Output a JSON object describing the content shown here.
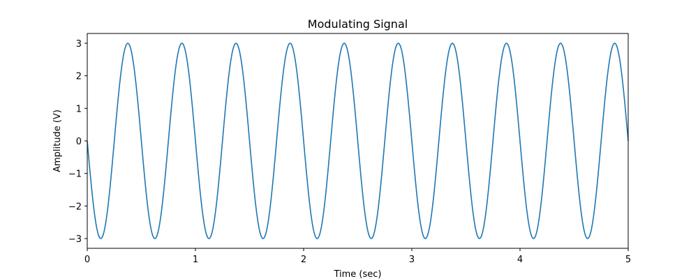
{
  "chart_data": {
    "type": "line",
    "title": "Modulating Signal",
    "xlabel": "Time (sec)",
    "ylabel": "Amplitude (V)",
    "xlim": [
      0,
      5
    ],
    "ylim": [
      -3.3,
      3.3
    ],
    "xticks": [
      0,
      1,
      2,
      3,
      4,
      5
    ],
    "xtick_labels": [
      "0",
      "1",
      "2",
      "3",
      "4",
      "5"
    ],
    "yticks": [
      -3,
      -2,
      -1,
      0,
      1,
      2,
      3
    ],
    "ytick_labels": [
      "−3",
      "−2",
      "−1",
      "0",
      "1",
      "2",
      "3"
    ],
    "grid": false,
    "series": [
      {
        "name": "modulating signal",
        "color": "#1f77b4",
        "function": "-A*sin(2*pi*f*t)",
        "amplitude": 3,
        "frequency_hz": 2,
        "t_start": 0,
        "t_end": 5,
        "samples": 1000
      }
    ]
  }
}
